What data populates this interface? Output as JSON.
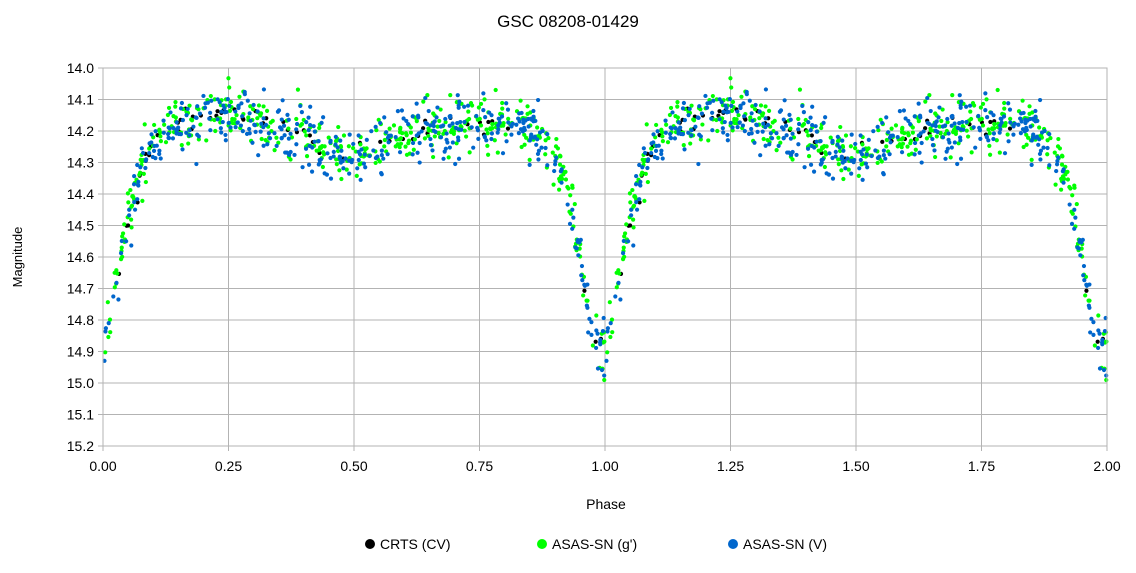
{
  "chart_data": {
    "type": "scatter",
    "title": "GSC 08208-01429",
    "xlabel": "Phase",
    "ylabel": "Magnitude",
    "xlim": [
      0.0,
      2.0
    ],
    "ylim": [
      14.0,
      15.2
    ],
    "y_inverted": true,
    "grid": true,
    "legend_position": "bottom",
    "x_ticks": [
      "0.00",
      "0.25",
      "0.50",
      "0.75",
      "1.00",
      "1.25",
      "1.50",
      "1.75",
      "2.00"
    ],
    "y_ticks": [
      "14.0",
      "14.1",
      "14.2",
      "14.3",
      "14.4",
      "14.5",
      "14.6",
      "14.7",
      "14.8",
      "14.9",
      "15.0",
      "15.1",
      "15.2"
    ],
    "light_curve_model": {
      "phase": [
        0.0,
        0.02,
        0.04,
        0.06,
        0.08,
        0.1,
        0.13,
        0.18,
        0.25,
        0.32,
        0.4,
        0.45,
        0.5,
        0.56,
        0.62,
        0.7,
        0.78,
        0.82,
        0.86,
        0.89,
        0.92,
        0.94,
        0.96,
        0.975,
        0.99,
        1.0
      ],
      "magnitude": [
        14.9,
        14.75,
        14.55,
        14.4,
        14.3,
        14.23,
        14.2,
        14.17,
        14.15,
        14.18,
        14.22,
        14.26,
        14.28,
        14.24,
        14.2,
        14.18,
        14.17,
        14.18,
        14.2,
        14.25,
        14.35,
        14.5,
        14.7,
        14.85,
        14.9,
        14.9
      ]
    },
    "series": [
      {
        "name": "CRTS (CV)",
        "color": "#000000",
        "count": 60,
        "scatter": 0.02,
        "seed": 11
      },
      {
        "name": "ASAS-SN (g')",
        "color": "#00ff00",
        "count": 420,
        "scatter": 0.04,
        "seed": 23
      },
      {
        "name": "ASAS-SN (V)",
        "color": "#0066cc",
        "count": 420,
        "scatter": 0.045,
        "seed": 37
      }
    ]
  }
}
